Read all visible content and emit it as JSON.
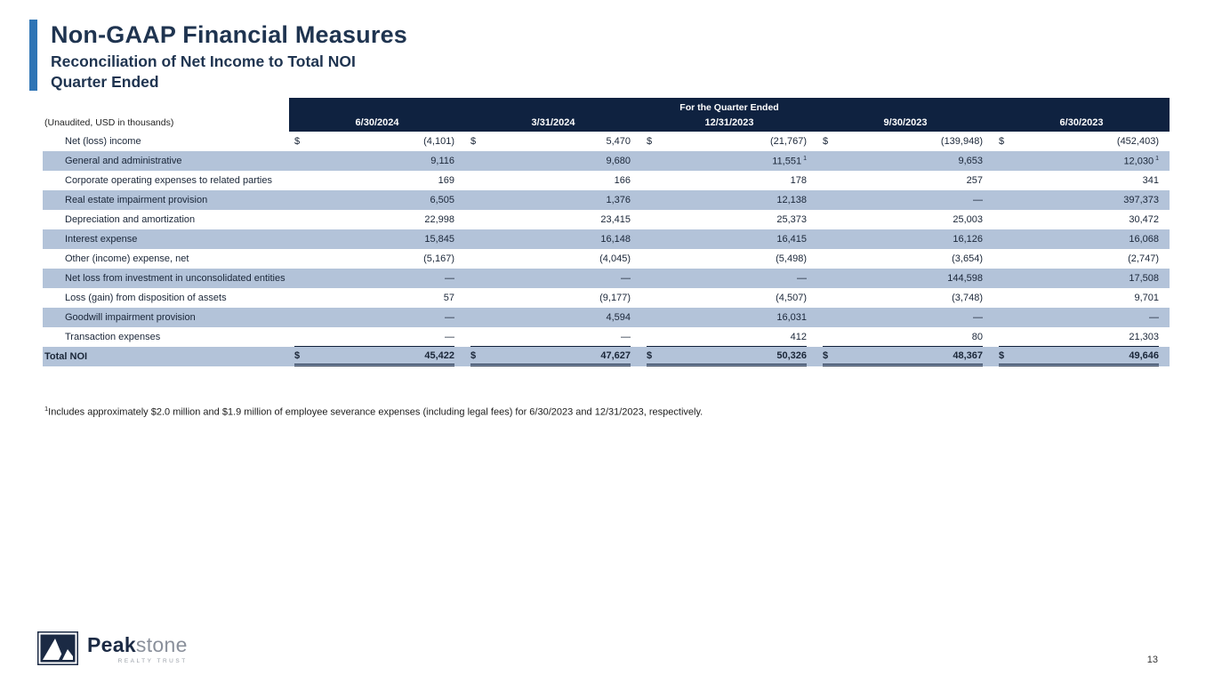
{
  "slide": {
    "title": "Non-GAAP Financial Measures",
    "subtitle1": "Reconciliation of Net Income to Total NOI",
    "subtitle2": "Quarter Ended",
    "page_number": "13"
  },
  "colors": {
    "accent_bar": "#2E74B5",
    "header_bg": "#0F2240",
    "shaded_row": "#B3C3D9",
    "title_color": "#1F3450",
    "text_color": "#1A2638",
    "rule_color": "#10203A"
  },
  "table": {
    "unaudited_label": "(Unaudited, USD in thousands)",
    "header_group": "For the Quarter Ended",
    "columns": [
      "6/30/2024",
      "3/31/2024",
      "12/31/2023",
      "9/30/2023",
      "6/30/2023"
    ],
    "rows": [
      {
        "label": "Net (loss) income",
        "dollar": true,
        "shaded": false,
        "values": [
          "(4,101)",
          "5,470",
          "(21,767)",
          "(139,948)",
          "(452,403)"
        ]
      },
      {
        "label": "General and administrative",
        "shaded": true,
        "values": [
          "9,116",
          "9,680",
          "11,551",
          "9,653",
          "12,030"
        ],
        "superscripts": [
          null,
          null,
          "1",
          null,
          "1"
        ]
      },
      {
        "label": "Corporate operating expenses to related parties",
        "shaded": false,
        "values": [
          "169",
          "166",
          "178",
          "257",
          "341"
        ]
      },
      {
        "label": "Real estate impairment provision",
        "shaded": true,
        "values": [
          "6,505",
          "1,376",
          "12,138",
          "—",
          "397,373"
        ]
      },
      {
        "label": "Depreciation and amortization",
        "shaded": false,
        "values": [
          "22,998",
          "23,415",
          "25,373",
          "25,003",
          "30,472"
        ]
      },
      {
        "label": "Interest expense",
        "shaded": true,
        "values": [
          "15,845",
          "16,148",
          "16,415",
          "16,126",
          "16,068"
        ]
      },
      {
        "label": "Other (income) expense, net",
        "shaded": false,
        "values": [
          "(5,167)",
          "(4,045)",
          "(5,498)",
          "(3,654)",
          "(2,747)"
        ]
      },
      {
        "label": "Net loss from investment in unconsolidated entities",
        "shaded": true,
        "values": [
          "—",
          "—",
          "—",
          "144,598",
          "17,508"
        ]
      },
      {
        "label": "Loss (gain) from disposition of assets",
        "shaded": false,
        "values": [
          "57",
          "(9,177)",
          "(4,507)",
          "(3,748)",
          "9,701"
        ]
      },
      {
        "label": "Goodwill impairment provision",
        "shaded": true,
        "values": [
          "—",
          "4,594",
          "16,031",
          "—",
          "—"
        ]
      },
      {
        "label": "Transaction expenses",
        "shaded": false,
        "underline": true,
        "values": [
          "—",
          "—",
          "412",
          "80",
          "21,303"
        ]
      }
    ],
    "total_row": {
      "label": "Total NOI",
      "dollar": true,
      "shaded": true,
      "values": [
        "45,422",
        "47,627",
        "50,326",
        "48,367",
        "49,646"
      ]
    }
  },
  "footnote": {
    "sup": "1",
    "text": "Includes approximately $2.0 million and $1.9 million of employee severance expenses (including legal fees) for 6/30/2023 and 12/31/2023, respectively."
  },
  "logo": {
    "word_bold": "Peak",
    "word_light": "stone",
    "tagline": "REALTY TRUST"
  }
}
